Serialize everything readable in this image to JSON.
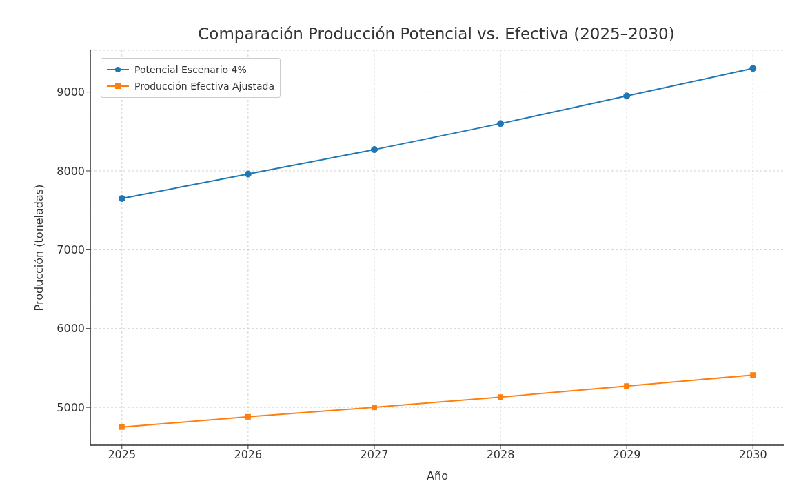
{
  "chart_data": {
    "type": "line",
    "title": "Comparación Producción Potencial vs. Efectiva (2025–2030)",
    "xlabel": "Año",
    "ylabel": "Producción (toneladas)",
    "x": [
      2025,
      2026,
      2027,
      2028,
      2029,
      2030
    ],
    "series": [
      {
        "name": "Potencial Escenario 4%",
        "color": "#1f77b4",
        "marker": "circle",
        "values": [
          7650,
          7960,
          8270,
          8600,
          8950,
          9300
        ]
      },
      {
        "name": "Producción Efectiva Ajustada",
        "color": "#ff7f0e",
        "marker": "square",
        "values": [
          4750,
          4880,
          5000,
          5130,
          5270,
          5410
        ]
      }
    ],
    "xlim": [
      2024.75,
      2030.25
    ],
    "xticks": [
      2025,
      2026,
      2027,
      2028,
      2029,
      2030
    ],
    "ylim": [
      4520,
      9530
    ],
    "yticks": [
      5000,
      6000,
      7000,
      8000,
      9000
    ],
    "grid": true,
    "legend": "top left",
    "line_style": "solid"
  }
}
